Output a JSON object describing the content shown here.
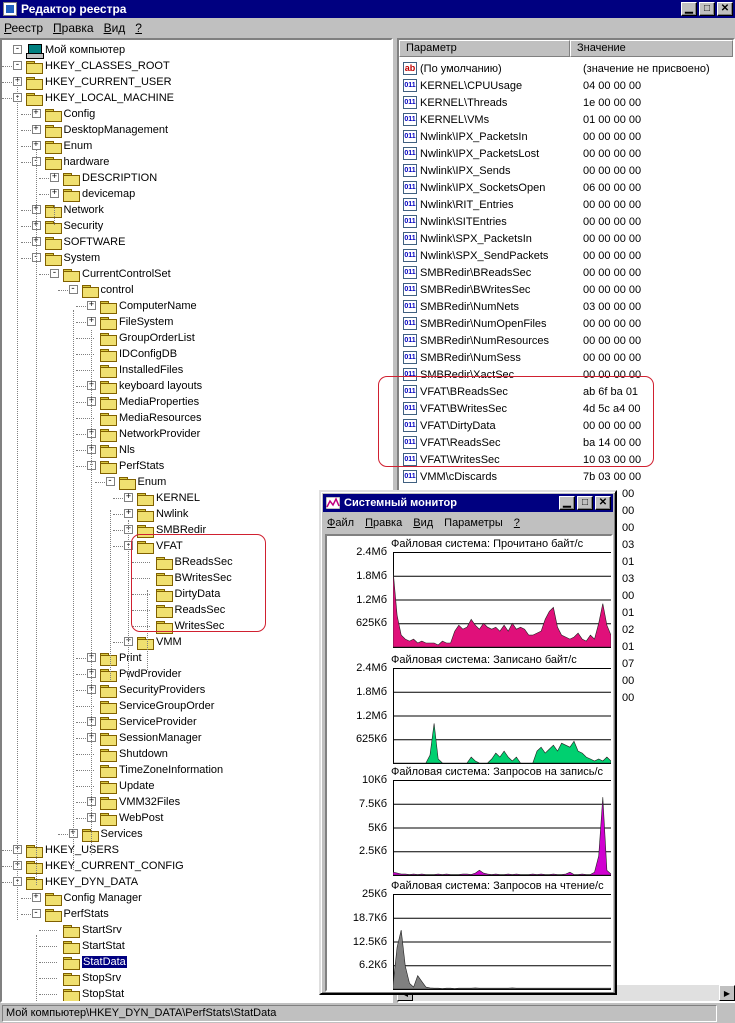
{
  "window": {
    "title": "Редактор реестра"
  },
  "menu": [
    {
      "u": "Р",
      "rest": "еестр"
    },
    {
      "u": "П",
      "rest": "равка"
    },
    {
      "u": "В",
      "rest": "ид"
    },
    {
      "u": "?",
      "rest": ""
    }
  ],
  "tree": {
    "root": "Мой компьютер",
    "nodes": [
      {
        "label": "HKEY_CLASSES_ROOT"
      },
      {
        "label": "HKEY_CURRENT_USER"
      },
      {
        "label": "HKEY_LOCAL_MACHINE"
      },
      {
        "label": "Config"
      },
      {
        "label": "DesktopManagement"
      },
      {
        "label": "Enum"
      },
      {
        "label": "hardware"
      },
      {
        "label": "DESCRIPTION"
      },
      {
        "label": "devicemap"
      },
      {
        "label": "Network"
      },
      {
        "label": "Security"
      },
      {
        "label": "SOFTWARE"
      },
      {
        "label": "System"
      },
      {
        "label": "CurrentControlSet"
      },
      {
        "label": "control"
      },
      {
        "label": "ComputerName"
      },
      {
        "label": "FileSystem"
      },
      {
        "label": "GroupOrderList"
      },
      {
        "label": "IDConfigDB"
      },
      {
        "label": "InstalledFiles"
      },
      {
        "label": "keyboard layouts"
      },
      {
        "label": "MediaProperties"
      },
      {
        "label": "MediaResources"
      },
      {
        "label": "NetworkProvider"
      },
      {
        "label": "Nls"
      },
      {
        "label": "PerfStats"
      },
      {
        "label": "Enum"
      },
      {
        "label": "KERNEL"
      },
      {
        "label": "Nwlink"
      },
      {
        "label": "SMBRedir"
      },
      {
        "label": "VFAT"
      },
      {
        "label": "BReadsSec"
      },
      {
        "label": "BWritesSec"
      },
      {
        "label": "DirtyData"
      },
      {
        "label": "ReadsSec"
      },
      {
        "label": "WritesSec"
      },
      {
        "label": "VMM"
      },
      {
        "label": "Print"
      },
      {
        "label": "PwdProvider"
      },
      {
        "label": "SecurityProviders"
      },
      {
        "label": "ServiceGroupOrder"
      },
      {
        "label": "ServiceProvider"
      },
      {
        "label": "SessionManager"
      },
      {
        "label": "Shutdown"
      },
      {
        "label": "TimeZoneInformation"
      },
      {
        "label": "Update"
      },
      {
        "label": "VMM32Files"
      },
      {
        "label": "WebPost"
      },
      {
        "label": "Services"
      },
      {
        "label": "HKEY_USERS"
      },
      {
        "label": "HKEY_CURRENT_CONFIG"
      },
      {
        "label": "HKEY_DYN_DATA"
      },
      {
        "label": "Config Manager"
      },
      {
        "label": "PerfStats"
      },
      {
        "label": "StartSrv"
      },
      {
        "label": "StartStat"
      },
      {
        "label": "StatData"
      },
      {
        "label": "StopSrv"
      },
      {
        "label": "StopStat"
      }
    ]
  },
  "list": {
    "col_name": "Параметр",
    "col_value": "Значение",
    "rows": [
      {
        "name": "(По умолчанию)",
        "value": "(значение не присвоено)",
        "icon": "ab"
      },
      {
        "name": "KERNEL\\CPUUsage",
        "value": "04 00 00 00",
        "icon": "bin"
      },
      {
        "name": "KERNEL\\Threads",
        "value": "1e 00 00 00",
        "icon": "bin"
      },
      {
        "name": "KERNEL\\VMs",
        "value": "01 00 00 00",
        "icon": "bin"
      },
      {
        "name": "Nwlink\\IPX_PacketsIn",
        "value": "00 00 00 00",
        "icon": "bin"
      },
      {
        "name": "Nwlink\\IPX_PacketsLost",
        "value": "00 00 00 00",
        "icon": "bin"
      },
      {
        "name": "Nwlink\\IPX_Sends",
        "value": "00 00 00 00",
        "icon": "bin"
      },
      {
        "name": "Nwlink\\IPX_SocketsOpen",
        "value": "06 00 00 00",
        "icon": "bin"
      },
      {
        "name": "Nwlink\\RIT_Entries",
        "value": "00 00 00 00",
        "icon": "bin"
      },
      {
        "name": "Nwlink\\SITEntries",
        "value": "00 00 00 00",
        "icon": "bin"
      },
      {
        "name": "Nwlink\\SPX_PacketsIn",
        "value": "00 00 00 00",
        "icon": "bin"
      },
      {
        "name": "Nwlink\\SPX_SendPackets",
        "value": "00 00 00 00",
        "icon": "bin"
      },
      {
        "name": "SMBRedir\\BReadsSec",
        "value": "00 00 00 00",
        "icon": "bin"
      },
      {
        "name": "SMBRedir\\BWritesSec",
        "value": "00 00 00 00",
        "icon": "bin"
      },
      {
        "name": "SMBRedir\\NumNets",
        "value": "03 00 00 00",
        "icon": "bin"
      },
      {
        "name": "SMBRedir\\NumOpenFiles",
        "value": "00 00 00 00",
        "icon": "bin"
      },
      {
        "name": "SMBRedir\\NumResources",
        "value": "00 00 00 00",
        "icon": "bin"
      },
      {
        "name": "SMBRedir\\NumSess",
        "value": "00 00 00 00",
        "icon": "bin"
      },
      {
        "name": "SMBRedir\\XactSec",
        "value": "00 00 00 00",
        "icon": "bin"
      },
      {
        "name": "VFAT\\BReadsSec",
        "value": "ab 6f ba 01",
        "icon": "bin"
      },
      {
        "name": "VFAT\\BWritesSec",
        "value": "4d 5c a4 00",
        "icon": "bin"
      },
      {
        "name": "VFAT\\DirtyData",
        "value": "00 00 00 00",
        "icon": "bin"
      },
      {
        "name": "VFAT\\ReadsSec",
        "value": "ba 14 00 00",
        "icon": "bin"
      },
      {
        "name": "VFAT\\WritesSec",
        "value": "10 03 00 00",
        "icon": "bin"
      },
      {
        "name": "VMM\\cDiscards",
        "value": "7b 03 00 00",
        "icon": "bin"
      }
    ],
    "partial_values": [
      "00",
      "00",
      "00",
      "03",
      "01",
      "03",
      "00",
      "01",
      "02",
      "01",
      "07",
      "00",
      "00"
    ]
  },
  "status": "Мой компьютер\\HKEY_DYN_DATA\\PerfStats\\StatData",
  "monitor": {
    "title": "Системный монитор",
    "menu": [
      {
        "u": "Ф",
        "rest": "айл"
      },
      {
        "u": "П",
        "rest": "равка"
      },
      {
        "u": "В",
        "rest": "ид"
      },
      {
        "u": "",
        "rest": "Параметры"
      },
      {
        "u": "?",
        "rest": ""
      }
    ]
  },
  "colors": {
    "title_bar": "#000080",
    "read_bytes": "#e0107a",
    "write_bytes": "#00d070",
    "write_req": "#d000d0",
    "read_req": "#808080"
  },
  "chart_data": [
    {
      "type": "area",
      "title": "Файловая система: Прочитано байт/с",
      "yticks": [
        "2.4Мб",
        "1.8Мб",
        "1.2Мб",
        "625Кб"
      ],
      "ylim": [
        0,
        2.4
      ],
      "color": "#e0107a",
      "values": [
        1.95,
        0.8,
        0.3,
        0.2,
        0.15,
        0.2,
        0.1,
        0.15,
        0.1,
        0.1,
        0.1,
        0.05,
        0.15,
        0.1,
        0.1,
        0.4,
        0.55,
        0.45,
        0.5,
        0.7,
        0.55,
        0.45,
        0.6,
        0.5,
        0.45,
        0.5,
        0.4,
        0.55,
        0.4,
        0.6,
        0.45,
        0.5,
        0.45,
        0.3,
        0.3,
        0.35,
        0.4,
        0.7,
        0.9,
        1.0,
        0.5,
        0.3,
        0.25,
        0.2,
        0.25,
        0.35,
        0.2,
        0.15,
        0.3,
        0.2,
        0.6,
        1.1,
        0.55,
        0.3
      ]
    },
    {
      "type": "area",
      "title": "Файловая система: Записано байт/с",
      "yticks": [
        "2.4Мб",
        "1.8Мб",
        "1.2Мб",
        "625Кб"
      ],
      "ylim": [
        0,
        2.4
      ],
      "color": "#00d070",
      "values": [
        0,
        0,
        0,
        0,
        0,
        0,
        0,
        0,
        0,
        0.2,
        1.0,
        0.1,
        0,
        0,
        0,
        0,
        0,
        0,
        0,
        0.15,
        0.05,
        0,
        0,
        0,
        0.1,
        0.25,
        0.15,
        0.3,
        0.15,
        0.05,
        0.15,
        0,
        0,
        0,
        0,
        0.3,
        0.4,
        0.25,
        0.35,
        0.45,
        0.3,
        0.5,
        0.45,
        0.4,
        0.55,
        0.3,
        0.25,
        0.15,
        0.1,
        0.05,
        0.1,
        0.05,
        0.15,
        0.05
      ]
    },
    {
      "type": "area",
      "title": "Файловая система: Запросов на запись/с",
      "yticks": [
        "10Кб",
        "7.5Кб",
        "5Кб",
        "2.5Кб"
      ],
      "ylim": [
        0,
        10
      ],
      "color": "#d000d0",
      "values": [
        0.3,
        0.2,
        0.1,
        0.1,
        0.05,
        0.1,
        0.05,
        0.1,
        0.05,
        0.05,
        0.05,
        0.1,
        0.05,
        0.1,
        0.05,
        0.05,
        0.05,
        0.1,
        0.1,
        0.05,
        0.2,
        0.5,
        0.2,
        0.1,
        0.05,
        0.1,
        0.05,
        0.05,
        0.1,
        0.05,
        0.1,
        0.05,
        0.05,
        0.05,
        0.1,
        0.05,
        0.1,
        0.05,
        0.05,
        0.1,
        0.05,
        0.05,
        0.1,
        0.3,
        0.05,
        0.05,
        0.1,
        0.05,
        0.05,
        0.3,
        2.0,
        8.2,
        0.5,
        0.1
      ]
    },
    {
      "type": "area",
      "title": "Файловая система: Запросов на чтение/с",
      "yticks": [
        "25Кб",
        "18.7Кб",
        "12.5Кб",
        "6.2Кб"
      ],
      "ylim": [
        0,
        25
      ],
      "color": "#808080",
      "values": [
        1.0,
        11.0,
        15.5,
        6.0,
        1.5,
        0.5,
        3.5,
        2.0,
        0.5,
        0.3,
        0.2,
        0.2,
        0.1,
        0.2,
        0.2,
        0.1,
        0.2,
        0.2,
        0.2,
        0.2,
        0.3,
        0.2,
        0.2,
        0.2,
        0.2,
        0.2,
        0.2,
        0.2,
        0.2,
        0.3,
        0.2,
        0.2,
        0.2,
        0.2,
        0.2,
        0.2,
        0.2,
        0.2,
        0.2,
        0.2,
        0.2,
        0.2,
        0.2,
        0.2,
        0.2,
        0.2,
        0.2,
        0.2,
        0.2,
        0.2,
        0.2,
        0.2,
        0.2,
        0.2
      ]
    }
  ]
}
